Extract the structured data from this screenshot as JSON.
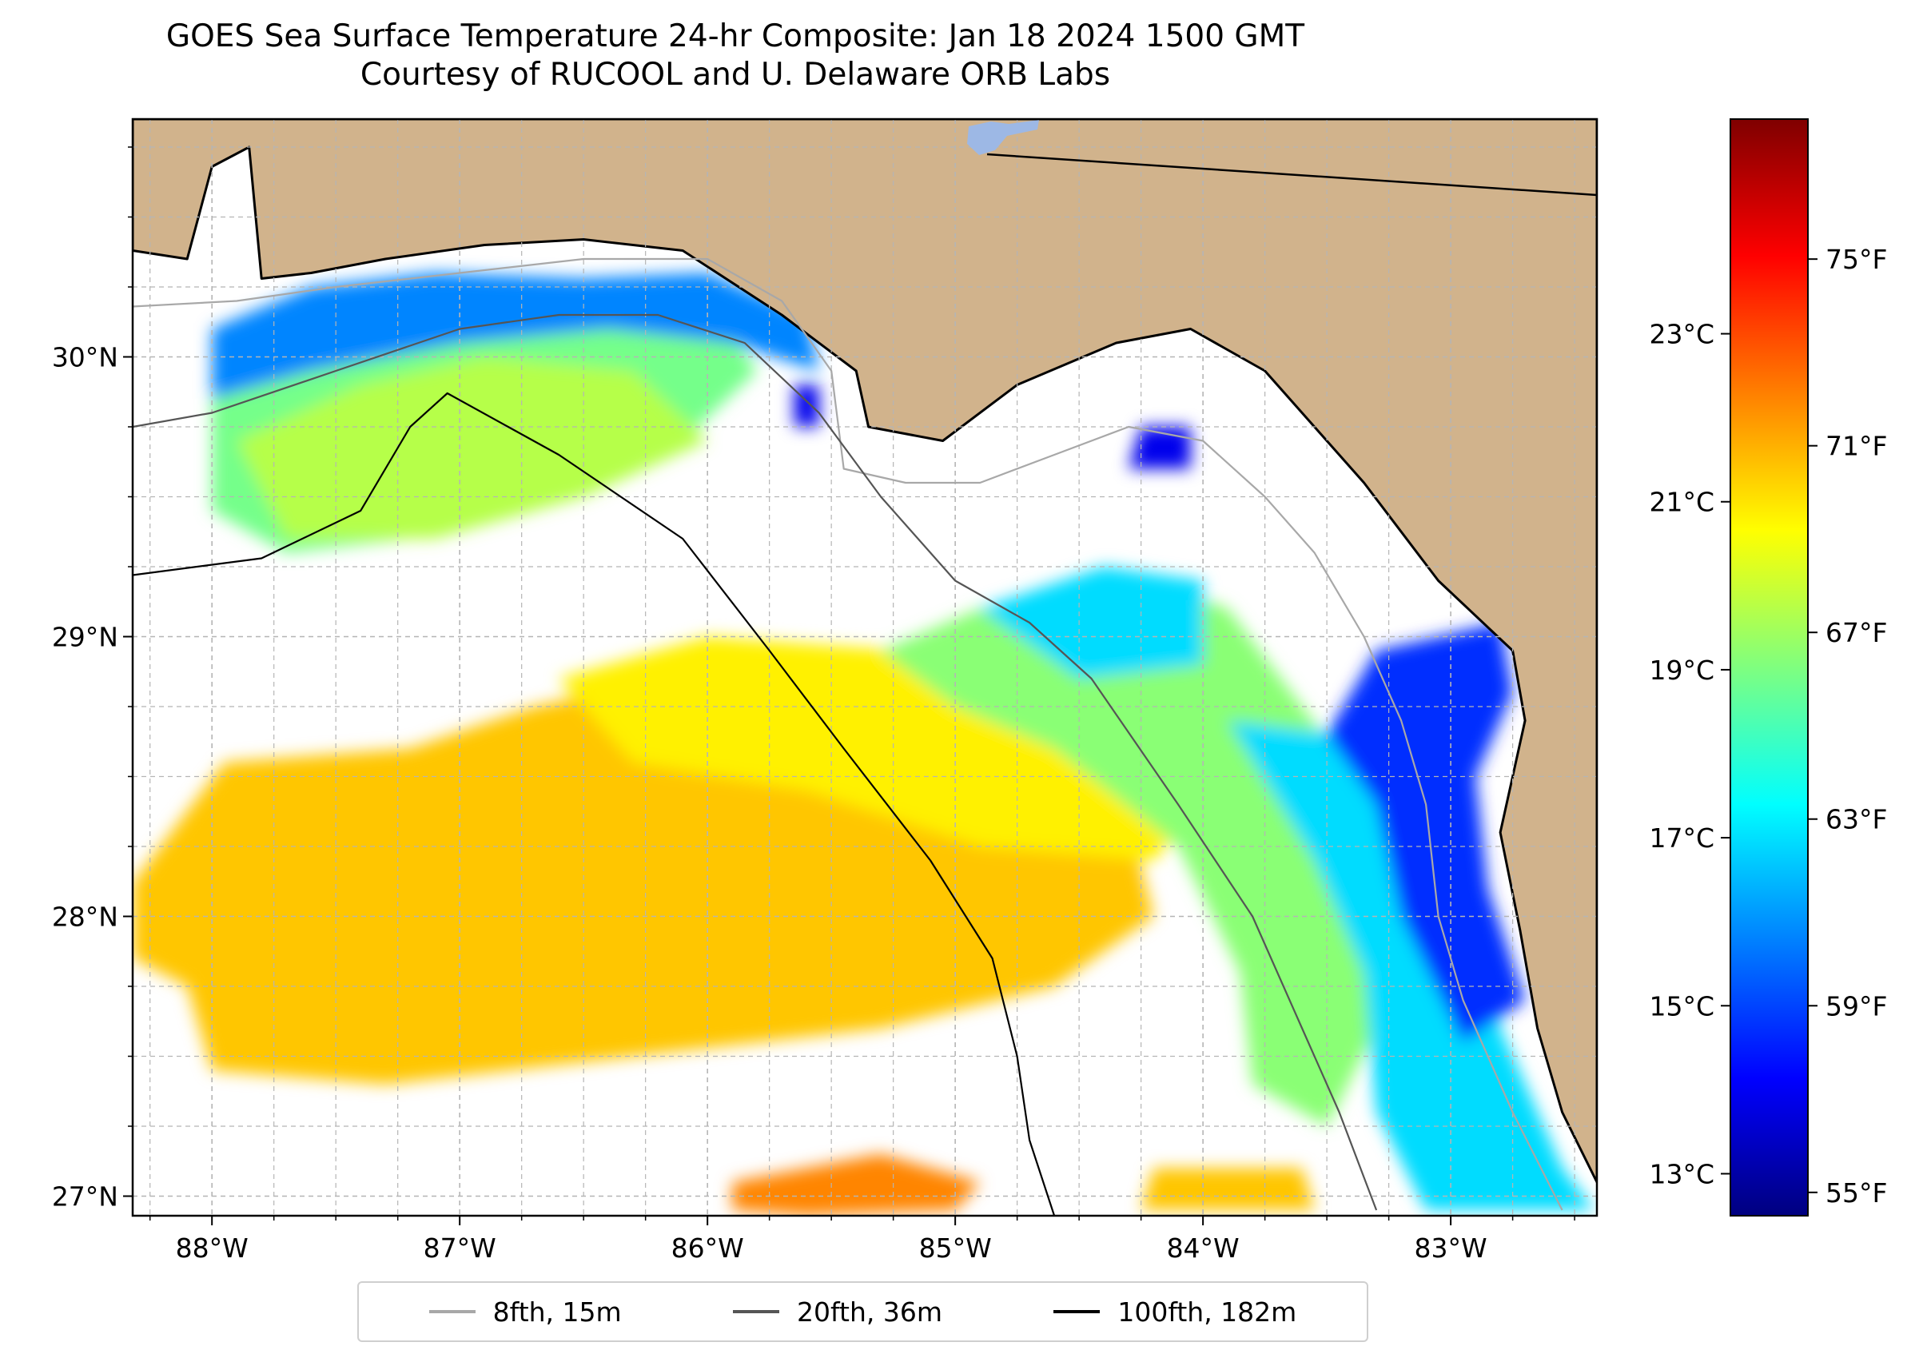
{
  "title": {
    "line1": "GOES Sea Surface Temperature 24-hr Composite: Jan 18 2024 1500 GMT",
    "line2": "Courtesy of RUCOOL and U. Delaware ORB Labs"
  },
  "map": {
    "lon_range": [
      -88.32,
      -82.41
    ],
    "lat_range": [
      26.93,
      30.85
    ],
    "lon_ticks": [
      {
        "value": -88,
        "label": "88°W"
      },
      {
        "value": -87,
        "label": "87°W"
      },
      {
        "value": -86,
        "label": "86°W"
      },
      {
        "value": -85,
        "label": "85°W"
      },
      {
        "value": -84,
        "label": "84°W"
      },
      {
        "value": -83,
        "label": "83°W"
      }
    ],
    "lat_ticks": [
      {
        "value": 27,
        "label": "27°N"
      },
      {
        "value": 28,
        "label": "28°N"
      },
      {
        "value": 29,
        "label": "29°N"
      },
      {
        "value": 30,
        "label": "30°N"
      }
    ],
    "gridlines": true,
    "colors": {
      "land": "#d1b38c",
      "ocean_nodata": "#ffffff",
      "coast": "#000000",
      "lake": "#9db8e5",
      "gridline": "#b5b5b5"
    }
  },
  "colorbar": {
    "cmap": "jet",
    "range_f": [
      54.5,
      78
    ],
    "celsius_ticks": [
      {
        "value": 13,
        "label": "13°C"
      },
      {
        "value": 15,
        "label": "15°C"
      },
      {
        "value": 17,
        "label": "17°C"
      },
      {
        "value": 19,
        "label": "19°C"
      },
      {
        "value": 21,
        "label": "21°C"
      },
      {
        "value": 23,
        "label": "23°C"
      }
    ],
    "fahrenheit_ticks": [
      {
        "value": 55,
        "label": "55°F"
      },
      {
        "value": 59,
        "label": "59°F"
      },
      {
        "value": 63,
        "label": "63°F"
      },
      {
        "value": 67,
        "label": "67°F"
      },
      {
        "value": 71,
        "label": "71°F"
      },
      {
        "value": 75,
        "label": "75°F"
      }
    ]
  },
  "legend": [
    {
      "label": "8fth, 15m",
      "color": "#a8a8a8"
    },
    {
      "label": "20fth, 36m",
      "color": "#555555"
    },
    {
      "label": "100fth, 182m",
      "color": "#000000"
    }
  ],
  "sst_patches": [
    {
      "name": "south-west warm",
      "temp_f": 70.5,
      "points": [
        [
          -88.32,
          28.12
        ],
        [
          -87.95,
          28.55
        ],
        [
          -87.2,
          28.6
        ],
        [
          -86.7,
          28.75
        ],
        [
          -86.2,
          28.85
        ],
        [
          -85.7,
          28.85
        ],
        [
          -85.2,
          28.9
        ],
        [
          -84.75,
          28.8
        ],
        [
          -84.3,
          28.35
        ],
        [
          -84.2,
          28.0
        ],
        [
          -84.6,
          27.75
        ],
        [
          -85.3,
          27.6
        ],
        [
          -86.3,
          27.5
        ],
        [
          -87.3,
          27.4
        ],
        [
          -88.0,
          27.45
        ],
        [
          -88.1,
          27.75
        ],
        [
          -88.32,
          27.85
        ]
      ]
    },
    {
      "name": "central warm yellow",
      "temp_f": 69.5,
      "points": [
        [
          -86.6,
          28.85
        ],
        [
          -86.0,
          29.0
        ],
        [
          -85.2,
          28.95
        ],
        [
          -84.6,
          28.85
        ],
        [
          -84.2,
          28.6
        ],
        [
          -84.0,
          28.4
        ],
        [
          -84.2,
          28.2
        ],
        [
          -84.9,
          28.25
        ],
        [
          -85.6,
          28.45
        ],
        [
          -86.3,
          28.55
        ]
      ]
    },
    {
      "name": "east gradient green",
      "temp_f": 66.5,
      "points": [
        [
          -85.3,
          28.95
        ],
        [
          -84.9,
          29.1
        ],
        [
          -84.2,
          29.2
        ],
        [
          -83.9,
          29.1
        ],
        [
          -83.6,
          28.75
        ],
        [
          -83.3,
          28.4
        ],
        [
          -83.2,
          28.0
        ],
        [
          -83.3,
          27.6
        ],
        [
          -83.5,
          27.25
        ],
        [
          -83.8,
          27.4
        ],
        [
          -83.85,
          27.8
        ],
        [
          -84.1,
          28.25
        ],
        [
          -84.6,
          28.6
        ],
        [
          -85.0,
          28.75
        ]
      ]
    },
    {
      "name": "east coastal cyan",
      "temp_f": 62.5,
      "points": [
        [
          -83.9,
          28.7
        ],
        [
          -83.45,
          28.65
        ],
        [
          -83.1,
          28.55
        ],
        [
          -82.95,
          28.1
        ],
        [
          -82.8,
          27.6
        ],
        [
          -82.55,
          27.1
        ],
        [
          -82.42,
          26.95
        ],
        [
          -83.1,
          26.95
        ],
        [
          -83.3,
          27.3
        ],
        [
          -83.35,
          27.8
        ],
        [
          -83.55,
          28.2
        ]
      ]
    },
    {
      "name": "east nearshore blue",
      "temp_f": 58.5,
      "points": [
        [
          -83.3,
          28.95
        ],
        [
          -82.8,
          29.05
        ],
        [
          -82.75,
          28.8
        ],
        [
          -82.9,
          28.5
        ],
        [
          -82.85,
          28.1
        ],
        [
          -82.7,
          27.7
        ],
        [
          -82.95,
          27.55
        ],
        [
          -83.2,
          28.0
        ],
        [
          -83.3,
          28.4
        ],
        [
          -83.5,
          28.65
        ]
      ]
    },
    {
      "name": "north-east small cyan",
      "temp_f": 62.5,
      "points": [
        [
          -84.9,
          29.1
        ],
        [
          -84.4,
          29.25
        ],
        [
          -84.0,
          29.2
        ],
        [
          -84.0,
          28.9
        ],
        [
          -84.5,
          28.85
        ]
      ]
    },
    {
      "name": "north-west shelf green",
      "temp_f": 66,
      "points": [
        [
          -88.0,
          29.95
        ],
        [
          -87.5,
          30.15
        ],
        [
          -87.0,
          30.25
        ],
        [
          -86.5,
          30.25
        ],
        [
          -86.0,
          30.2
        ],
        [
          -85.8,
          29.95
        ],
        [
          -86.1,
          29.7
        ],
        [
          -86.6,
          29.5
        ],
        [
          -87.2,
          29.35
        ],
        [
          -87.7,
          29.3
        ],
        [
          -88.0,
          29.45
        ]
      ]
    },
    {
      "name": "north-west nearshore blue",
      "temp_f": 60.5,
      "points": [
        [
          -88.0,
          30.1
        ],
        [
          -87.6,
          30.25
        ],
        [
          -87.1,
          30.3
        ],
        [
          -86.5,
          30.28
        ],
        [
          -86.0,
          30.3
        ],
        [
          -85.6,
          30.15
        ],
        [
          -85.55,
          29.95
        ],
        [
          -85.9,
          30.05
        ],
        [
          -86.4,
          30.1
        ],
        [
          -87.0,
          30.05
        ],
        [
          -87.6,
          29.95
        ],
        [
          -88.0,
          29.85
        ]
      ]
    },
    {
      "name": "west central green",
      "temp_f": 67.5,
      "points": [
        [
          -87.9,
          29.7
        ],
        [
          -87.4,
          29.9
        ],
        [
          -86.9,
          30.0
        ],
        [
          -86.3,
          29.95
        ],
        [
          -86.0,
          29.7
        ],
        [
          -86.5,
          29.5
        ],
        [
          -87.1,
          29.35
        ],
        [
          -87.7,
          29.35
        ]
      ]
    },
    {
      "name": "far south patch orange",
      "temp_f": 72,
      "points": [
        [
          -85.9,
          27.05
        ],
        [
          -85.3,
          27.15
        ],
        [
          -84.9,
          27.05
        ],
        [
          -85.0,
          26.95
        ],
        [
          -85.6,
          26.93
        ],
        [
          -85.9,
          26.95
        ]
      ]
    },
    {
      "name": "south small orange",
      "temp_f": 70.5,
      "points": [
        [
          -84.2,
          27.1
        ],
        [
          -83.6,
          27.1
        ],
        [
          -83.55,
          26.95
        ],
        [
          -84.25,
          26.95
        ]
      ]
    },
    {
      "name": "apalachee blue spot",
      "temp_f": 57,
      "points": [
        [
          -84.25,
          29.75
        ],
        [
          -84.05,
          29.75
        ],
        [
          -84.05,
          29.6
        ],
        [
          -84.3,
          29.6
        ]
      ]
    },
    {
      "name": "gulf bay blue spot",
      "temp_f": 57,
      "points": [
        [
          -85.65,
          29.9
        ],
        [
          -85.55,
          29.9
        ],
        [
          -85.55,
          29.75
        ],
        [
          -85.65,
          29.75
        ]
      ]
    }
  ],
  "land_polygon": [
    [
      -88.32,
      30.85
    ],
    [
      -82.41,
      30.85
    ],
    [
      -82.41,
      27.05
    ],
    [
      -82.55,
      27.3
    ],
    [
      -82.65,
      27.6
    ],
    [
      -82.72,
      27.95
    ],
    [
      -82.8,
      28.3
    ],
    [
      -82.7,
      28.7
    ],
    [
      -82.75,
      28.95
    ],
    [
      -83.05,
      29.2
    ],
    [
      -83.35,
      29.55
    ],
    [
      -83.75,
      29.95
    ],
    [
      -84.05,
      30.1
    ],
    [
      -84.35,
      30.05
    ],
    [
      -84.75,
      29.9
    ],
    [
      -85.05,
      29.7
    ],
    [
      -85.35,
      29.75
    ],
    [
      -85.4,
      29.95
    ],
    [
      -85.7,
      30.15
    ],
    [
      -86.1,
      30.38
    ],
    [
      -86.5,
      30.42
    ],
    [
      -86.9,
      30.4
    ],
    [
      -87.3,
      30.35
    ],
    [
      -87.6,
      30.3
    ],
    [
      -87.8,
      30.28
    ],
    [
      -87.85,
      30.75
    ],
    [
      -88.0,
      30.68
    ],
    [
      -88.1,
      30.35
    ],
    [
      -88.32,
      30.38
    ]
  ]
}
